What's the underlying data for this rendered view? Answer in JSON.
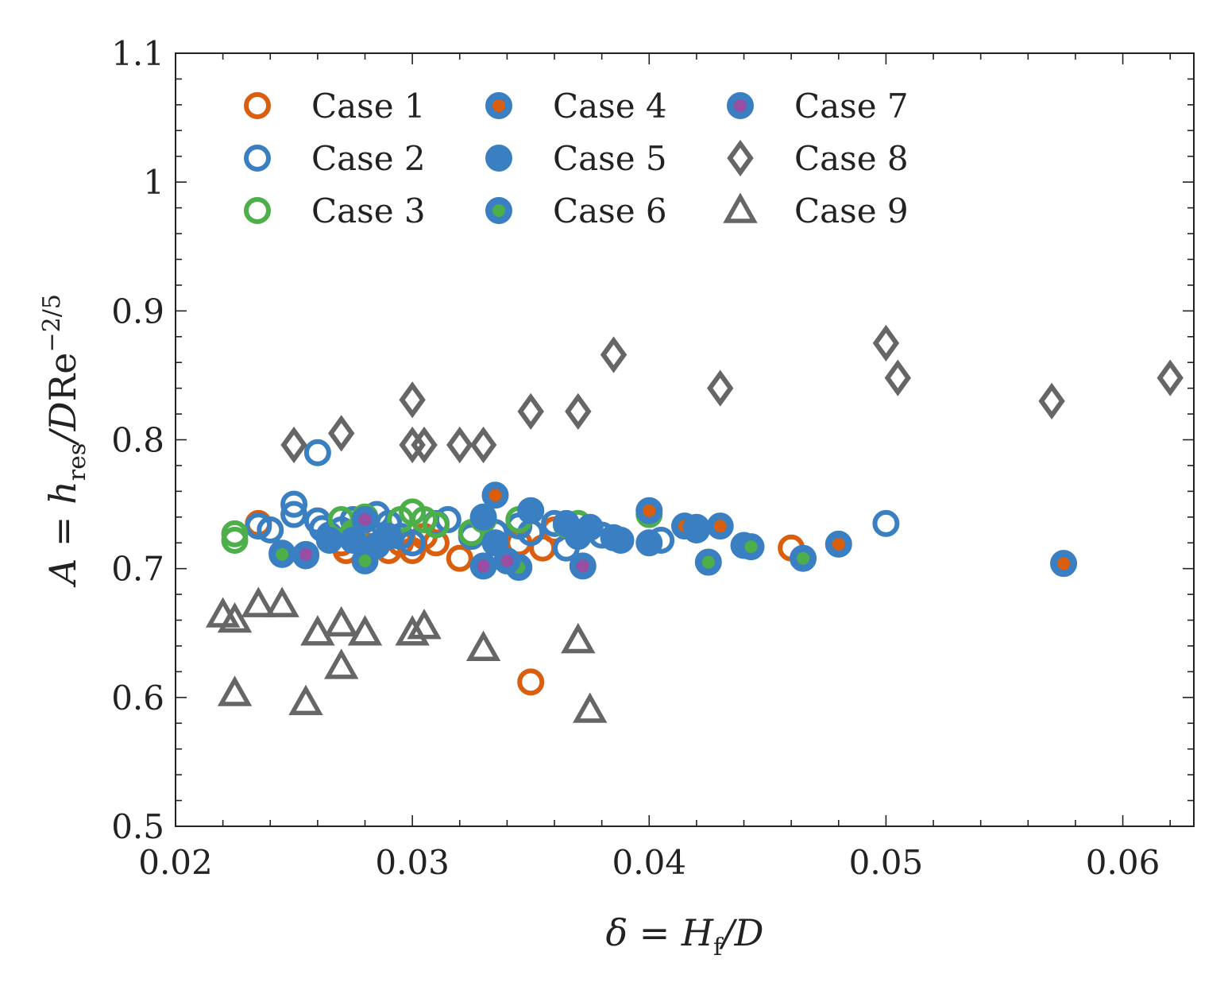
{
  "chart_data": {
    "type": "scatter",
    "xlabel": "δ = H_f/D",
    "ylabel": "A = h_res/DRe^−2/5",
    "xlim": [
      0.02,
      0.063
    ],
    "ylim": [
      0.5,
      1.1
    ],
    "x_ticks": [
      0.02,
      0.03,
      0.04,
      0.05,
      0.06
    ],
    "x_tick_labels": [
      "0.02",
      "0.03",
      "0.04",
      "0.05",
      "0.06"
    ],
    "y_ticks": [
      0.5,
      0.6,
      0.7,
      0.8,
      0.9,
      1.0,
      1.1
    ],
    "y_tick_labels": [
      "0.5",
      "0.6",
      "0.7",
      "0.8",
      "0.9",
      "1",
      "1.1"
    ],
    "legend_position": "top-left",
    "series": [
      {
        "name": "Case 1",
        "marker": "open-circle",
        "edge": "#d95f0e",
        "fill": "none",
        "points": [
          [
            0.0235,
            0.735
          ],
          [
            0.027,
            0.72
          ],
          [
            0.0272,
            0.714
          ],
          [
            0.028,
            0.718
          ],
          [
            0.029,
            0.714
          ],
          [
            0.0295,
            0.72
          ],
          [
            0.03,
            0.714
          ],
          [
            0.0305,
            0.725
          ],
          [
            0.031,
            0.72
          ],
          [
            0.032,
            0.708
          ],
          [
            0.0345,
            0.72
          ],
          [
            0.035,
            0.612
          ],
          [
            0.0355,
            0.716
          ],
          [
            0.036,
            0.73
          ],
          [
            0.046,
            0.716
          ]
        ]
      },
      {
        "name": "Case 2",
        "marker": "open-circle",
        "edge": "#3a7fc1",
        "fill": "none",
        "points": [
          [
            0.0235,
            0.733
          ],
          [
            0.024,
            0.73
          ],
          [
            0.025,
            0.75
          ],
          [
            0.025,
            0.742
          ],
          [
            0.026,
            0.79
          ],
          [
            0.026,
            0.737
          ],
          [
            0.0262,
            0.731
          ],
          [
            0.0265,
            0.726
          ],
          [
            0.027,
            0.73
          ],
          [
            0.0275,
            0.738
          ],
          [
            0.028,
            0.725
          ],
          [
            0.0285,
            0.742
          ],
          [
            0.029,
            0.735
          ],
          [
            0.0295,
            0.725
          ],
          [
            0.03,
            0.72
          ],
          [
            0.031,
            0.735
          ],
          [
            0.0315,
            0.738
          ],
          [
            0.0325,
            0.725
          ],
          [
            0.0335,
            0.728
          ],
          [
            0.0345,
            0.733
          ],
          [
            0.035,
            0.728
          ],
          [
            0.036,
            0.735
          ],
          [
            0.0365,
            0.716
          ],
          [
            0.038,
            0.726
          ],
          [
            0.0405,
            0.722
          ],
          [
            0.042,
            0.73
          ],
          [
            0.05,
            0.735
          ]
        ]
      },
      {
        "name": "Case 3",
        "marker": "open-circle",
        "edge": "#4daf4a",
        "fill": "none",
        "points": [
          [
            0.0225,
            0.727
          ],
          [
            0.0225,
            0.722
          ],
          [
            0.027,
            0.738
          ],
          [
            0.0275,
            0.728
          ],
          [
            0.028,
            0.74
          ],
          [
            0.0295,
            0.738
          ],
          [
            0.03,
            0.744
          ],
          [
            0.0305,
            0.738
          ],
          [
            0.031,
            0.734
          ],
          [
            0.0325,
            0.728
          ],
          [
            0.033,
            0.738
          ],
          [
            0.0345,
            0.738
          ],
          [
            0.0365,
            0.734
          ],
          [
            0.037,
            0.735
          ],
          [
            0.04,
            0.742
          ]
        ]
      },
      {
        "name": "Case 4",
        "marker": "filled-circle-dot",
        "edge": "#3a7fc1",
        "fill": "#3a7fc1",
        "dot": "#d95f0e",
        "points": [
          [
            0.0335,
            0.757
          ],
          [
            0.04,
            0.745
          ],
          [
            0.0415,
            0.733
          ],
          [
            0.043,
            0.733
          ],
          [
            0.048,
            0.719
          ],
          [
            0.0575,
            0.704
          ]
        ]
      },
      {
        "name": "Case 5",
        "marker": "filled-circle",
        "edge": "#3a7fc1",
        "fill": "#3a7fc1",
        "points": [
          [
            0.0245,
            0.712
          ],
          [
            0.0255,
            0.71
          ],
          [
            0.0265,
            0.722
          ],
          [
            0.0275,
            0.722
          ],
          [
            0.0285,
            0.718
          ],
          [
            0.029,
            0.725
          ],
          [
            0.033,
            0.74
          ],
          [
            0.0335,
            0.72
          ],
          [
            0.035,
            0.745
          ],
          [
            0.0365,
            0.735
          ],
          [
            0.037,
            0.725
          ],
          [
            0.0375,
            0.732
          ],
          [
            0.0385,
            0.724
          ],
          [
            0.0388,
            0.722
          ],
          [
            0.04,
            0.72
          ],
          [
            0.042,
            0.732
          ],
          [
            0.044,
            0.718
          ]
        ]
      },
      {
        "name": "Case 6",
        "marker": "filled-circle-dot",
        "edge": "#3a7fc1",
        "fill": "#3a7fc1",
        "dot": "#4daf4a",
        "points": [
          [
            0.0245,
            0.711
          ],
          [
            0.028,
            0.706
          ],
          [
            0.0345,
            0.701
          ],
          [
            0.0425,
            0.705
          ],
          [
            0.0443,
            0.717
          ],
          [
            0.0465,
            0.708
          ]
        ]
      },
      {
        "name": "Case 7",
        "marker": "filled-circle-dot",
        "edge": "#3a7fc1",
        "fill": "#3a7fc1",
        "dot": "#984ea3",
        "points": [
          [
            0.0255,
            0.711
          ],
          [
            0.028,
            0.738
          ],
          [
            0.033,
            0.702
          ],
          [
            0.034,
            0.706
          ],
          [
            0.0372,
            0.702
          ]
        ]
      },
      {
        "name": "Case 8",
        "marker": "open-diamond",
        "edge": "#666666",
        "fill": "none",
        "points": [
          [
            0.025,
            0.796
          ],
          [
            0.027,
            0.805
          ],
          [
            0.03,
            0.831
          ],
          [
            0.03,
            0.796
          ],
          [
            0.0305,
            0.796
          ],
          [
            0.032,
            0.796
          ],
          [
            0.033,
            0.796
          ],
          [
            0.035,
            0.822
          ],
          [
            0.037,
            0.822
          ],
          [
            0.0385,
            0.866
          ],
          [
            0.043,
            0.84
          ],
          [
            0.05,
            0.875
          ],
          [
            0.0505,
            0.848
          ],
          [
            0.057,
            0.83
          ],
          [
            0.062,
            0.848
          ]
        ]
      },
      {
        "name": "Case 9",
        "marker": "open-triangle",
        "edge": "#666666",
        "fill": "none",
        "points": [
          [
            0.022,
            0.664
          ],
          [
            0.0225,
            0.66
          ],
          [
            0.0225,
            0.603
          ],
          [
            0.0235,
            0.672
          ],
          [
            0.0245,
            0.672
          ],
          [
            0.0255,
            0.596
          ],
          [
            0.026,
            0.65
          ],
          [
            0.027,
            0.657
          ],
          [
            0.027,
            0.624
          ],
          [
            0.028,
            0.65
          ],
          [
            0.03,
            0.65
          ],
          [
            0.0305,
            0.655
          ],
          [
            0.033,
            0.638
          ],
          [
            0.037,
            0.644
          ],
          [
            0.0375,
            0.59
          ]
        ]
      }
    ]
  }
}
